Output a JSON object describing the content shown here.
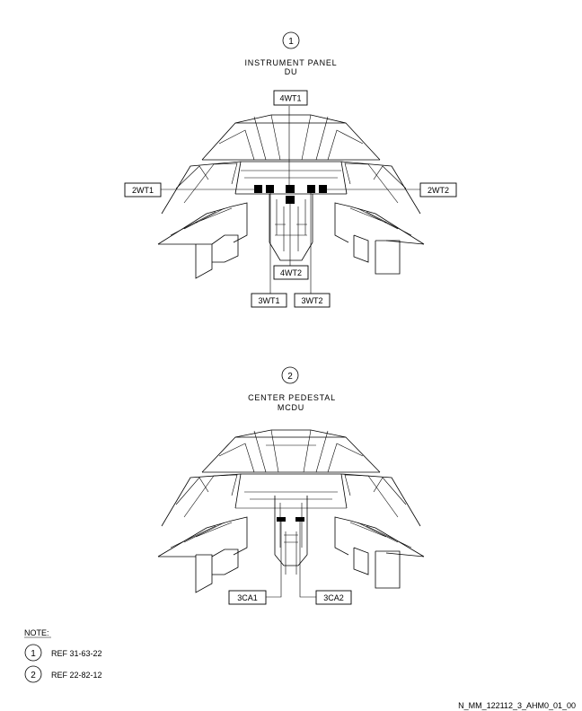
{
  "view1": {
    "index": "1",
    "title_line1": "INSTRUMENT PANEL",
    "title_line2": "DU",
    "callouts": {
      "top": "4WT1",
      "left": "2WT1",
      "right": "2WT2",
      "center_low": "4WT2",
      "bottom_left": "3WT1",
      "bottom_right": "3WT2"
    }
  },
  "view2": {
    "index": "2",
    "title_line1": "CENTER PEDESTAL",
    "title_line2": "MCDU",
    "callouts": {
      "left": "3CA1",
      "right": "3CA2"
    }
  },
  "notes": {
    "heading": "NOTE:",
    "items": [
      {
        "index": "1",
        "text": "REF 31-63-22"
      },
      {
        "index": "2",
        "text": "REF 22-82-12"
      }
    ]
  },
  "figure_id": "N_MM_122112_3_AHM0_01_00"
}
